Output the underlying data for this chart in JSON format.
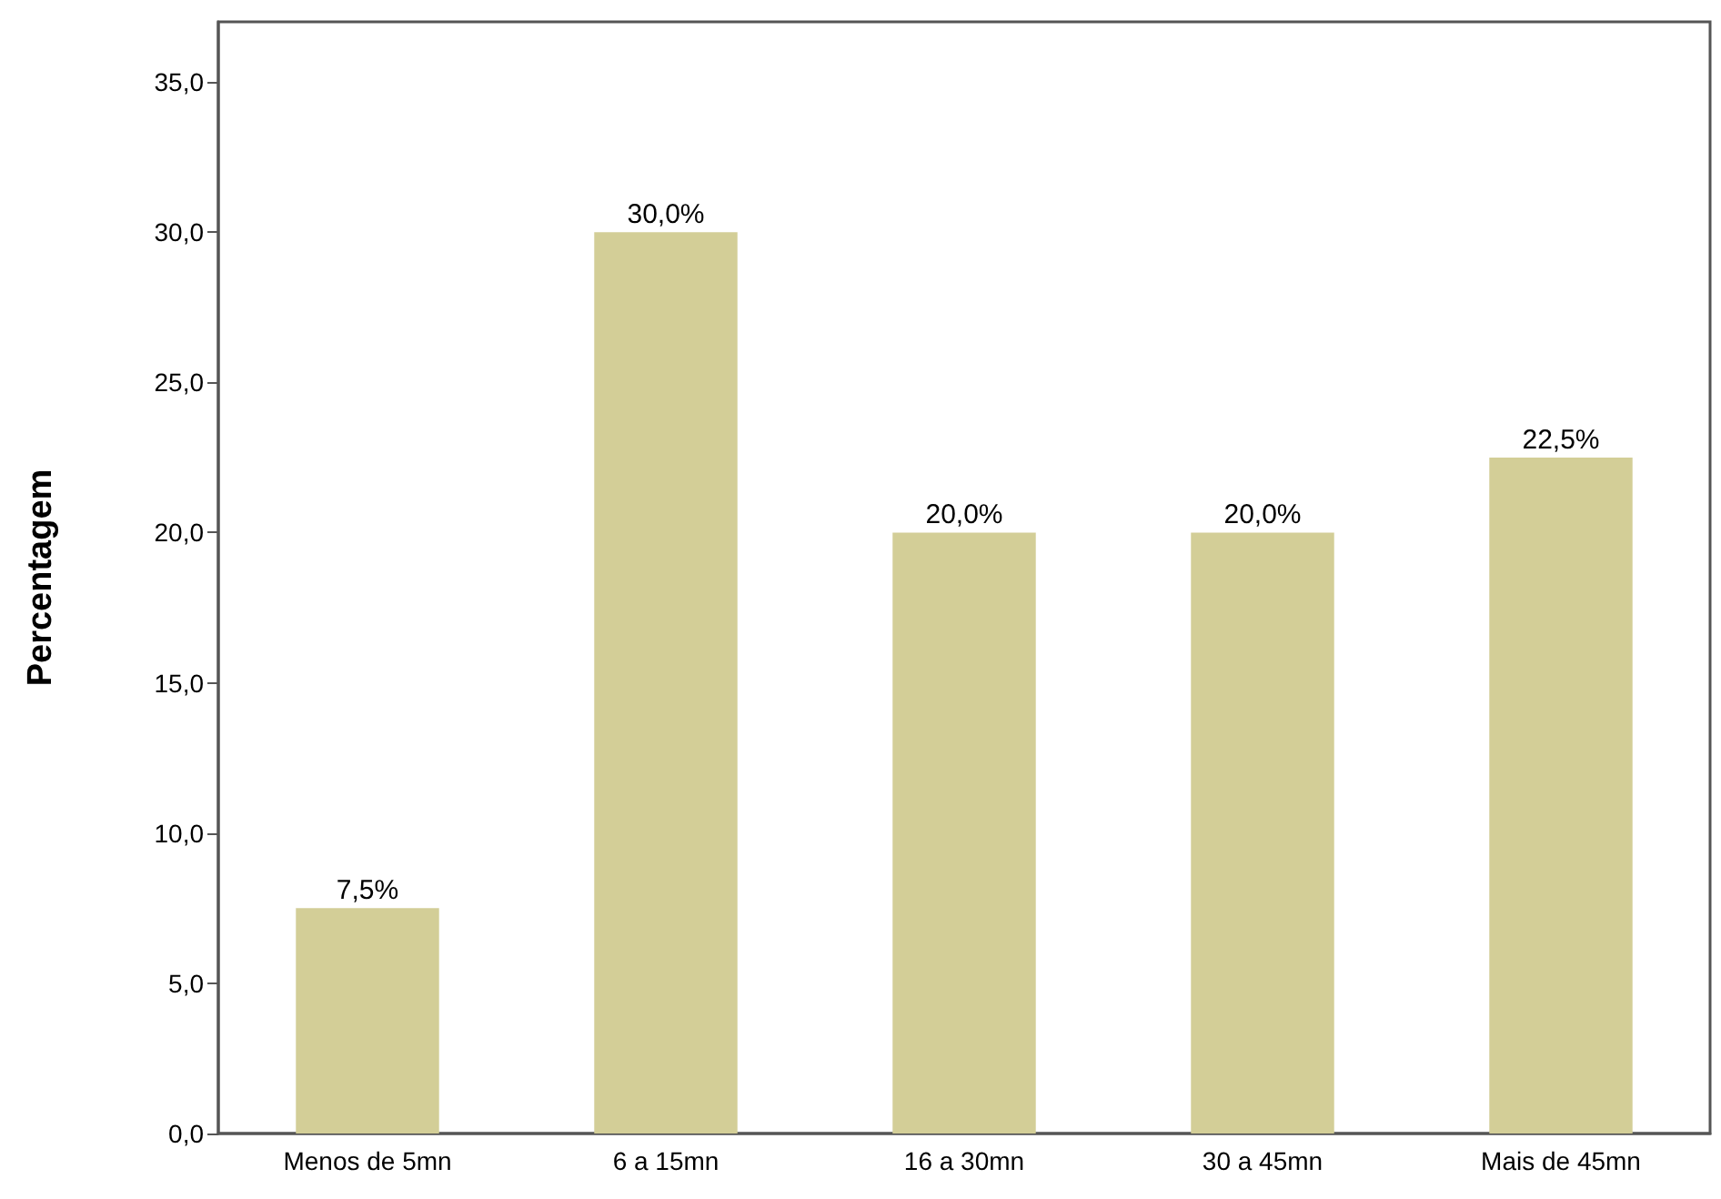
{
  "chart_data": {
    "type": "bar",
    "ylabel": "Percentagem",
    "categories": [
      "Menos de 5mn",
      "6 a 15mn",
      "16 a 30mn",
      "30 a 45mn",
      "Mais de 45mn"
    ],
    "values": [
      7.5,
      30.0,
      20.0,
      20.0,
      22.5
    ],
    "value_labels": [
      "7,5%",
      "30,0%",
      "20,0%",
      "20,0%",
      "22,5%"
    ],
    "color": "#d3ce97",
    "ylim": [
      0,
      37
    ],
    "yticks": [
      {
        "value": 0,
        "label": "0,0"
      },
      {
        "value": 5,
        "label": "5,0"
      },
      {
        "value": 10,
        "label": "10,0"
      },
      {
        "value": 15,
        "label": "15,0"
      },
      {
        "value": 20,
        "label": "20,0"
      },
      {
        "value": 25,
        "label": "25,0"
      },
      {
        "value": 30,
        "label": "30,0"
      },
      {
        "value": 35,
        "label": "35,0"
      }
    ]
  }
}
